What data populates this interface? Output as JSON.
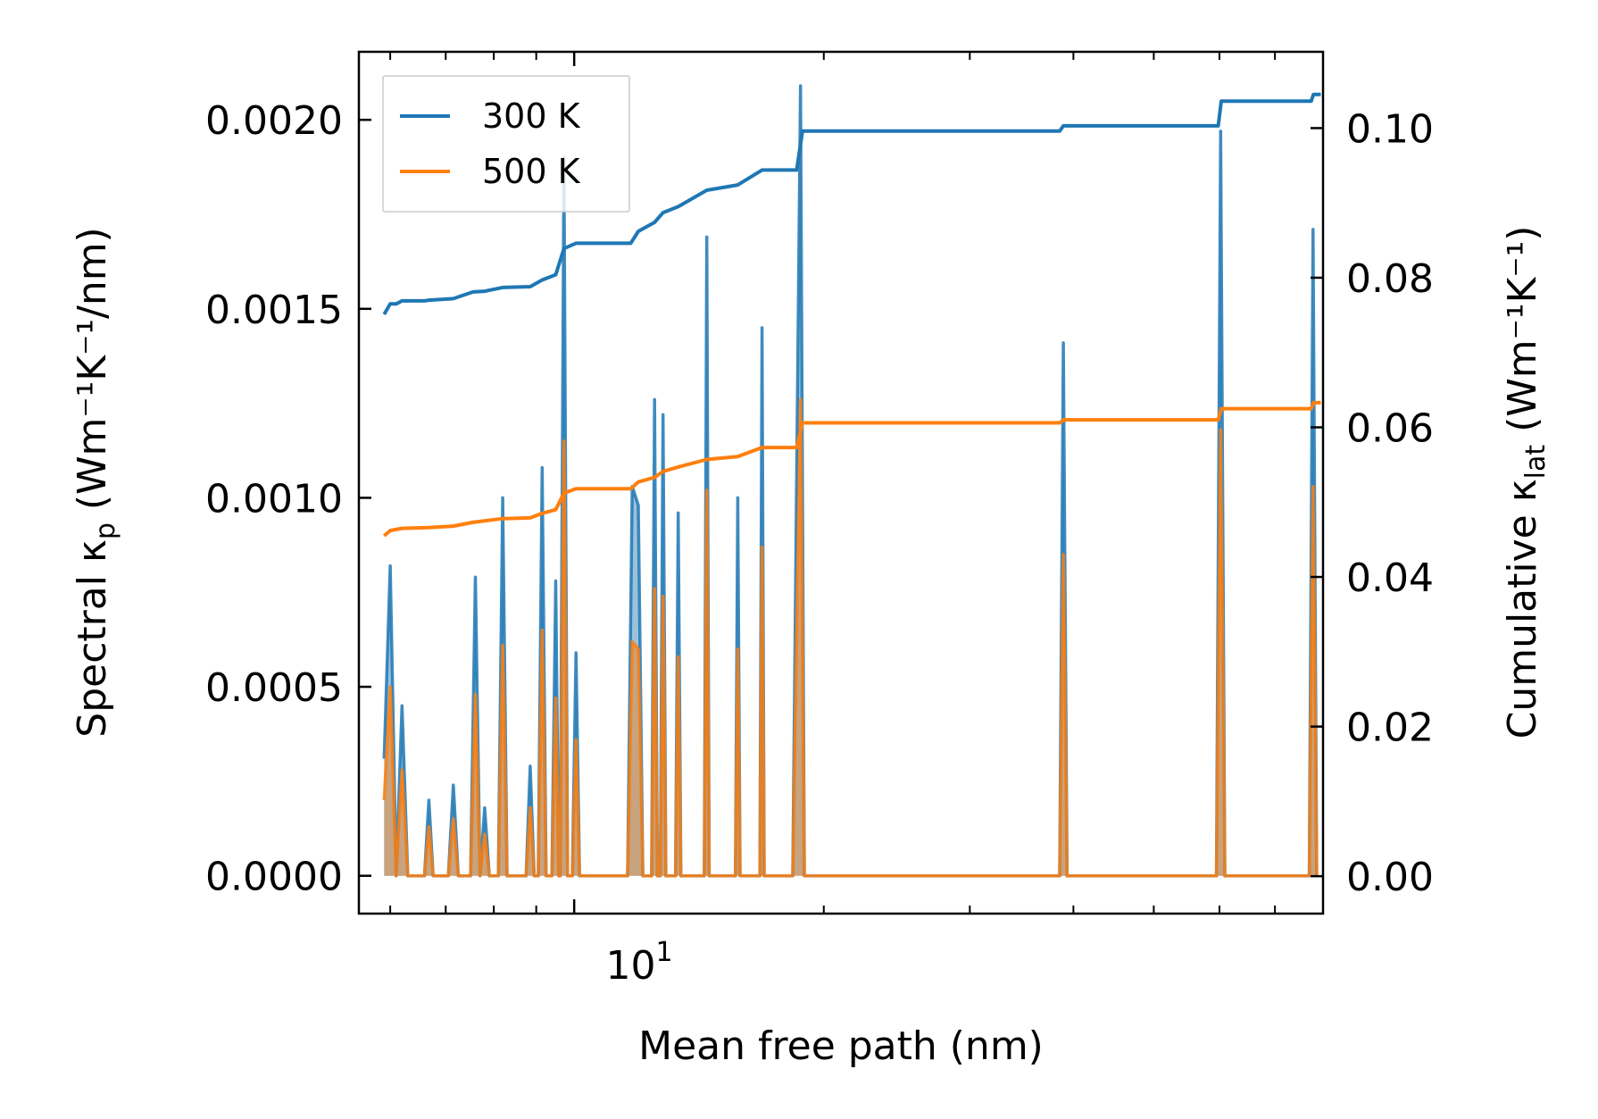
{
  "chart_data": {
    "type": "line",
    "xlabel": "Mean free path (nm)",
    "x_scale": "log",
    "xlim": [
      5.5,
      80
    ],
    "x_tick_label": {
      "base": "10",
      "exponent": "1",
      "value": 10
    },
    "x_minor_ticks": [
      6,
      7,
      8,
      9,
      20,
      30,
      40,
      50,
      60,
      70
    ],
    "ylabel_left": {
      "prefix": "Spectral κ",
      "sub": "p",
      "units": " (Wm⁻¹K⁻¹/nm)"
    },
    "ylabel_right": {
      "prefix": "Cumulative κ",
      "sub": "lat",
      "units": " (Wm⁻¹K⁻¹)"
    },
    "ylim_left": [
      -0.0001,
      0.00218
    ],
    "ylim_right": [
      -0.005,
      0.1102
    ],
    "left_ticks": [
      {
        "value": 0.0,
        "label": "0.0000"
      },
      {
        "value": 0.0005,
        "label": "0.0005"
      },
      {
        "value": 0.001,
        "label": "0.0010"
      },
      {
        "value": 0.0015,
        "label": "0.0015"
      },
      {
        "value": 0.002,
        "label": "0.0020"
      }
    ],
    "right_ticks": [
      {
        "value": 0.0,
        "label": "0.00"
      },
      {
        "value": 0.02,
        "label": "0.02"
      },
      {
        "value": 0.04,
        "label": "0.04"
      },
      {
        "value": 0.06,
        "label": "0.06"
      },
      {
        "value": 0.08,
        "label": "0.08"
      },
      {
        "value": 0.1,
        "label": "0.10"
      }
    ],
    "legend": {
      "position": "top-left"
    },
    "series": [
      {
        "name": "300 K",
        "color": "#1f77b4",
        "spectral": [
          [
            5.9,
            0.00031
          ],
          [
            6.0,
            0.00082
          ],
          [
            6.1,
            0.0
          ],
          [
            6.2,
            0.00045
          ],
          [
            6.3,
            0.0
          ],
          [
            6.6,
            0.0
          ],
          [
            6.68,
            0.0002
          ],
          [
            6.76,
            0.0
          ],
          [
            7.05,
            0.0
          ],
          [
            7.15,
            0.00024
          ],
          [
            7.25,
            0.0
          ],
          [
            7.5,
            0.0
          ],
          [
            7.6,
            0.00079
          ],
          [
            7.7,
            0.0
          ],
          [
            7.8,
            0.00018
          ],
          [
            7.9,
            0.0
          ],
          [
            8.1,
            0.0
          ],
          [
            8.2,
            0.001
          ],
          [
            8.3,
            0.0
          ],
          [
            8.75,
            0.0
          ],
          [
            8.85,
            0.00029
          ],
          [
            8.95,
            0.0
          ],
          [
            9.05,
            0.0
          ],
          [
            9.15,
            0.00108
          ],
          [
            9.25,
            0.0
          ],
          [
            9.4,
            0.0
          ],
          [
            9.5,
            0.00078
          ],
          [
            9.58,
            0.0
          ],
          [
            9.62,
            0.0
          ],
          [
            9.72,
            0.0019
          ],
          [
            9.82,
            0.0
          ],
          [
            9.95,
            0.0
          ],
          [
            10.05,
            0.00059
          ],
          [
            10.15,
            0.0
          ],
          [
            11.6,
            0.0
          ],
          [
            11.75,
            0.00103
          ],
          [
            11.95,
            0.00098
          ],
          [
            12.1,
            0.0
          ],
          [
            12.4,
            0.0
          ],
          [
            12.5,
            0.00126
          ],
          [
            12.6,
            0.0
          ],
          [
            12.7,
            0.0
          ],
          [
            12.8,
            0.00122
          ],
          [
            12.9,
            0.0
          ],
          [
            13.25,
            0.0
          ],
          [
            13.35,
            0.00096
          ],
          [
            13.45,
            0.0
          ],
          [
            14.35,
            0.0
          ],
          [
            14.45,
            0.00169
          ],
          [
            14.55,
            0.0
          ],
          [
            15.65,
            0.0
          ],
          [
            15.75,
            0.001
          ],
          [
            15.85,
            0.0
          ],
          [
            16.75,
            0.0
          ],
          [
            16.85,
            0.00145
          ],
          [
            16.95,
            0.0
          ],
          [
            18.35,
            0.0
          ],
          [
            18.75,
            0.00209
          ],
          [
            18.95,
            0.0
          ],
          [
            38.5,
            0.0
          ],
          [
            38.9,
            0.00141
          ],
          [
            39.3,
            0.0
          ],
          [
            59.5,
            0.0
          ],
          [
            60.2,
            0.00197
          ],
          [
            60.9,
            0.0
          ],
          [
            77.0,
            0.0
          ],
          [
            77.8,
            0.00171
          ],
          [
            78.6,
            0.0
          ]
        ],
        "cumulative": [
          [
            5.9,
            0.0751
          ],
          [
            6.0,
            0.0765
          ],
          [
            6.1,
            0.0765
          ],
          [
            6.2,
            0.0769
          ],
          [
            6.6,
            0.0769
          ],
          [
            6.68,
            0.077
          ],
          [
            7.15,
            0.0772
          ],
          [
            7.55,
            0.0781
          ],
          [
            7.8,
            0.0782
          ],
          [
            8.2,
            0.0787
          ],
          [
            8.85,
            0.0788
          ],
          [
            9.15,
            0.0797
          ],
          [
            9.5,
            0.0804
          ],
          [
            9.72,
            0.0839
          ],
          [
            10.05,
            0.0846
          ],
          [
            11.7,
            0.0846
          ],
          [
            11.95,
            0.0862
          ],
          [
            12.5,
            0.0874
          ],
          [
            12.8,
            0.0887
          ],
          [
            13.35,
            0.0895
          ],
          [
            14.45,
            0.0917
          ],
          [
            15.75,
            0.0924
          ],
          [
            16.85,
            0.0944
          ],
          [
            18.55,
            0.0944
          ],
          [
            18.85,
            0.0996
          ],
          [
            38.5,
            0.0996
          ],
          [
            38.9,
            0.1003
          ],
          [
            59.8,
            0.1003
          ],
          [
            60.3,
            0.1036
          ],
          [
            77.4,
            0.1036
          ],
          [
            77.9,
            0.1045
          ],
          [
            79.5,
            0.1045
          ]
        ]
      },
      {
        "name": "500 K",
        "color": "#ff7f0e",
        "spectral": [
          [
            5.9,
            0.0002
          ],
          [
            6.0,
            0.0005
          ],
          [
            6.1,
            0.0
          ],
          [
            6.2,
            0.00028
          ],
          [
            6.3,
            0.0
          ],
          [
            6.6,
            0.0
          ],
          [
            6.68,
            0.00013
          ],
          [
            6.76,
            0.0
          ],
          [
            7.05,
            0.0
          ],
          [
            7.15,
            0.00015
          ],
          [
            7.25,
            0.0
          ],
          [
            7.5,
            0.0
          ],
          [
            7.6,
            0.00048
          ],
          [
            7.7,
            0.0
          ],
          [
            7.8,
            0.00011
          ],
          [
            7.9,
            0.0
          ],
          [
            8.1,
            0.0
          ],
          [
            8.2,
            0.00061
          ],
          [
            8.3,
            0.0
          ],
          [
            8.75,
            0.0
          ],
          [
            8.85,
            0.00018
          ],
          [
            8.95,
            0.0
          ],
          [
            9.05,
            0.0
          ],
          [
            9.15,
            0.00065
          ],
          [
            9.25,
            0.0
          ],
          [
            9.4,
            0.0
          ],
          [
            9.5,
            0.00047
          ],
          [
            9.58,
            0.0
          ],
          [
            9.62,
            0.0
          ],
          [
            9.72,
            0.00115
          ],
          [
            9.82,
            0.0
          ],
          [
            9.95,
            0.0
          ],
          [
            10.05,
            0.00036
          ],
          [
            10.15,
            0.0
          ],
          [
            11.6,
            0.0
          ],
          [
            11.75,
            0.00062
          ],
          [
            11.95,
            0.0006
          ],
          [
            12.1,
            0.0
          ],
          [
            12.4,
            0.0
          ],
          [
            12.5,
            0.00076
          ],
          [
            12.6,
            0.0
          ],
          [
            12.7,
            0.0
          ],
          [
            12.8,
            0.00074
          ],
          [
            12.9,
            0.0
          ],
          [
            13.25,
            0.0
          ],
          [
            13.35,
            0.00058
          ],
          [
            13.45,
            0.0
          ],
          [
            14.35,
            0.0
          ],
          [
            14.45,
            0.00102
          ],
          [
            14.55,
            0.0
          ],
          [
            15.65,
            0.0
          ],
          [
            15.75,
            0.0006
          ],
          [
            15.85,
            0.0
          ],
          [
            16.75,
            0.0
          ],
          [
            16.85,
            0.00087
          ],
          [
            16.95,
            0.0
          ],
          [
            18.35,
            0.0
          ],
          [
            18.75,
            0.00126
          ],
          [
            18.95,
            0.0
          ],
          [
            38.5,
            0.0
          ],
          [
            38.9,
            0.00085
          ],
          [
            39.3,
            0.0
          ],
          [
            59.5,
            0.0
          ],
          [
            60.2,
            0.00118
          ],
          [
            60.9,
            0.0
          ],
          [
            77.0,
            0.0
          ],
          [
            77.8,
            0.00103
          ],
          [
            78.6,
            0.0
          ]
        ],
        "cumulative": [
          [
            5.9,
            0.0455
          ],
          [
            6.0,
            0.0462
          ],
          [
            6.2,
            0.0465
          ],
          [
            6.68,
            0.0466
          ],
          [
            7.15,
            0.0468
          ],
          [
            7.55,
            0.0473
          ],
          [
            8.2,
            0.0478
          ],
          [
            8.85,
            0.0479
          ],
          [
            9.15,
            0.0485
          ],
          [
            9.5,
            0.049
          ],
          [
            9.72,
            0.0512
          ],
          [
            10.05,
            0.0518
          ],
          [
            11.7,
            0.0518
          ],
          [
            11.95,
            0.0527
          ],
          [
            12.5,
            0.0533
          ],
          [
            12.8,
            0.0541
          ],
          [
            13.35,
            0.0547
          ],
          [
            14.45,
            0.0557
          ],
          [
            15.75,
            0.0561
          ],
          [
            16.85,
            0.0573
          ],
          [
            18.55,
            0.0573
          ],
          [
            18.85,
            0.0606
          ],
          [
            38.5,
            0.0606
          ],
          [
            38.9,
            0.061
          ],
          [
            59.8,
            0.061
          ],
          [
            60.3,
            0.0625
          ],
          [
            77.4,
            0.0625
          ],
          [
            77.9,
            0.0633
          ],
          [
            79.5,
            0.0633
          ]
        ]
      }
    ]
  }
}
